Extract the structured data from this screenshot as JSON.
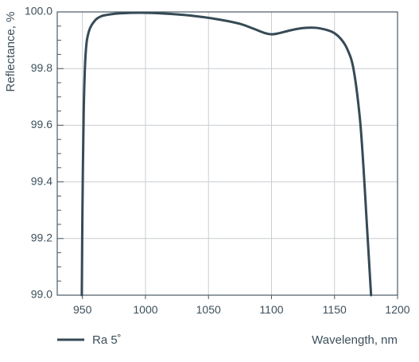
{
  "chart_data": {
    "type": "line",
    "xlabel": "Wavelength, nm",
    "ylabel": "Reflectance, %",
    "xlim": [
      930,
      1200
    ],
    "ylim": [
      99.0,
      100.0
    ],
    "x_ticks": [
      950,
      1000,
      1050,
      1100,
      1150,
      1200
    ],
    "x_tick_labels": [
      "950",
      "1000",
      "1050",
      "1100",
      "1150",
      "1200"
    ],
    "y_ticks": [
      99.0,
      99.2,
      99.4,
      99.6,
      99.8,
      100.0
    ],
    "y_tick_labels": [
      "99.0",
      "99.2",
      "99.4",
      "99.6",
      "99.8",
      "100.0"
    ],
    "y_minor_step": 0.05,
    "grid": true,
    "legend_position": "bottom-left",
    "series": [
      {
        "name": "Ra 5˚",
        "color": "#364a56",
        "points": [
          [
            949.5,
            99.0
          ],
          [
            950,
            99.3
          ],
          [
            951,
            99.65
          ],
          [
            952.5,
            99.85
          ],
          [
            955,
            99.93
          ],
          [
            960,
            99.97
          ],
          [
            965,
            99.985
          ],
          [
            970,
            99.99
          ],
          [
            980,
            99.995
          ],
          [
            1000,
            99.997
          ],
          [
            1020,
            99.993
          ],
          [
            1040,
            99.985
          ],
          [
            1060,
            99.972
          ],
          [
            1075,
            99.958
          ],
          [
            1085,
            99.942
          ],
          [
            1095,
            99.925
          ],
          [
            1100,
            99.921
          ],
          [
            1105,
            99.924
          ],
          [
            1115,
            99.935
          ],
          [
            1125,
            99.943
          ],
          [
            1135,
            99.944
          ],
          [
            1145,
            99.935
          ],
          [
            1150,
            99.925
          ],
          [
            1155,
            99.905
          ],
          [
            1160,
            99.87
          ],
          [
            1165,
            99.8
          ],
          [
            1170,
            99.63
          ],
          [
            1173,
            99.45
          ],
          [
            1175,
            99.3
          ],
          [
            1177,
            99.15
          ],
          [
            1179,
            99.0
          ]
        ]
      }
    ]
  }
}
